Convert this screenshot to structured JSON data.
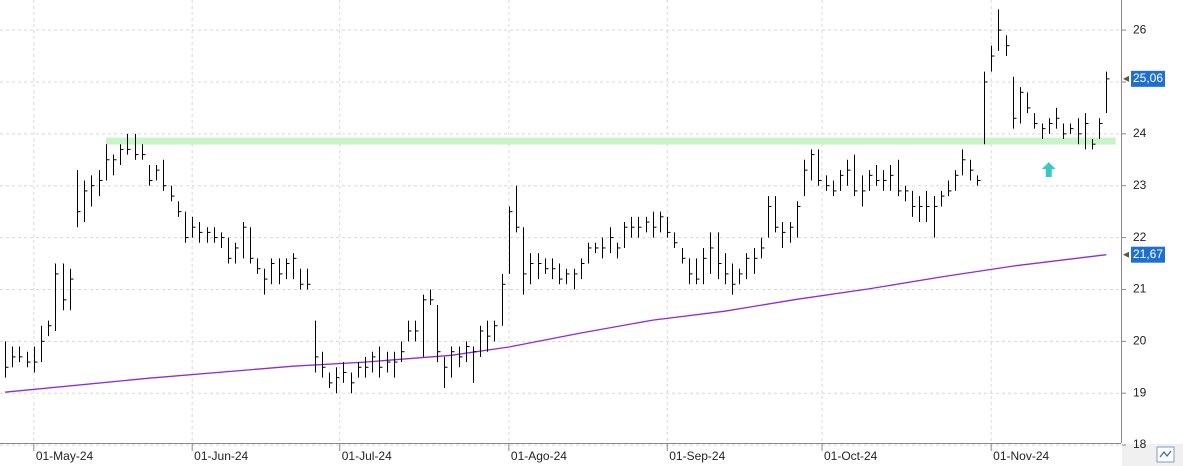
{
  "chart_data": {
    "type": "hlc",
    "color": "#000000",
    "high": [
      20.0,
      19.9,
      19.9,
      19.8,
      19.9,
      20.3,
      20.4,
      21.5,
      21.5,
      21.4,
      23.3,
      23.1,
      23.2,
      23.3,
      23.8,
      23.6,
      23.8,
      24.0,
      24.0,
      23.8,
      23.4,
      23.4,
      23.5,
      23.0,
      22.7,
      22.5,
      22.4,
      22.3,
      22.2,
      22.2,
      22.1,
      22.0,
      21.9,
      22.3,
      22.2,
      21.6,
      21.4,
      21.6,
      21.6,
      21.6,
      21.7,
      21.4,
      21.4,
      20.4,
      19.8,
      19.4,
      19.5,
      19.6,
      19.4,
      19.6,
      19.7,
      19.8,
      19.9,
      19.8,
      19.8,
      20.0,
      20.4,
      20.4,
      20.9,
      21.0,
      20.7,
      19.7,
      19.9,
      19.9,
      20.0,
      19.9,
      20.3,
      20.4,
      20.4,
      21.3,
      22.6,
      23.0,
      22.2,
      21.7,
      21.7,
      21.6,
      21.6,
      21.5,
      21.4,
      21.4,
      21.6,
      21.9,
      21.9,
      22.0,
      22.2,
      21.9,
      22.3,
      22.4,
      22.4,
      22.4,
      22.5,
      22.5,
      22.4,
      22.1,
      21.8,
      21.6,
      21.6,
      21.8,
      22.1,
      22.1,
      21.7,
      21.5,
      21.4,
      21.7,
      21.8,
      22.0,
      22.8,
      22.8,
      22.3,
      22.3,
      22.7,
      23.5,
      23.7,
      23.7,
      23.2,
      23.1,
      23.3,
      23.5,
      23.6,
      23.2,
      23.3,
      23.4,
      23.3,
      23.4,
      23.5,
      23.0,
      22.9,
      22.8,
      22.9,
      22.8,
      22.9,
      23.1,
      23.3,
      23.7,
      23.5,
      23.2,
      25.2,
      25.7,
      26.4,
      25.9,
      25.1,
      24.9,
      24.8,
      24.4,
      24.2,
      24.3,
      24.5,
      24.2,
      24.2,
      24.3,
      24.4,
      23.9,
      24.3,
      25.2
    ],
    "low": [
      19.3,
      19.5,
      19.6,
      19.5,
      19.4,
      19.6,
      20.1,
      20.2,
      20.6,
      20.6,
      22.2,
      22.3,
      22.6,
      22.8,
      23.1,
      23.2,
      23.4,
      23.6,
      23.5,
      23.5,
      23.0,
      23.1,
      22.9,
      22.7,
      22.4,
      21.9,
      22.0,
      21.9,
      21.9,
      21.9,
      21.8,
      21.5,
      21.5,
      21.6,
      21.5,
      21.3,
      20.9,
      21.1,
      21.1,
      21.2,
      21.2,
      21.0,
      21.0,
      19.4,
      19.3,
      19.1,
      19.0,
      19.2,
      19.0,
      19.3,
      19.3,
      19.4,
      19.3,
      19.4,
      19.3,
      19.6,
      20.0,
      20.0,
      19.7,
      20.7,
      19.6,
      19.1,
      19.3,
      19.5,
      19.6,
      19.2,
      19.7,
      19.8,
      20.0,
      20.3,
      21.3,
      22.1,
      20.9,
      21.1,
      21.2,
      21.3,
      21.2,
      21.1,
      21.1,
      21.0,
      21.2,
      21.5,
      21.7,
      21.6,
      21.7,
      21.6,
      21.8,
      22.0,
      22.0,
      22.1,
      22.0,
      22.1,
      22.0,
      21.8,
      21.5,
      21.1,
      21.1,
      21.1,
      21.3,
      21.2,
      21.1,
      20.9,
      21.1,
      21.2,
      21.3,
      21.6,
      22.0,
      22.1,
      21.8,
      21.9,
      22.0,
      22.8,
      23.1,
      23.0,
      22.9,
      22.8,
      22.9,
      23.0,
      22.8,
      22.6,
      22.9,
      23.0,
      22.9,
      22.9,
      22.8,
      22.7,
      22.4,
      22.3,
      22.3,
      22.0,
      22.6,
      22.8,
      22.9,
      23.2,
      23.1,
      23.0,
      23.8,
      25.2,
      25.6,
      25.5,
      24.1,
      24.2,
      24.4,
      24.1,
      23.9,
      24.0,
      24.1,
      23.9,
      24.0,
      23.8,
      23.7,
      23.7,
      23.9,
      24.4
    ],
    "close": [
      19.5,
      19.7,
      19.7,
      19.6,
      19.6,
      20.0,
      20.3,
      21.3,
      20.8,
      21.2,
      22.5,
      22.9,
      23.0,
      23.1,
      23.5,
      23.5,
      23.7,
      23.7,
      23.6,
      23.6,
      23.1,
      23.3,
      23.0,
      22.8,
      22.5,
      22.0,
      22.2,
      22.1,
      22.1,
      22.0,
      22.0,
      21.6,
      21.8,
      22.2,
      21.6,
      21.4,
      21.2,
      21.5,
      21.3,
      21.5,
      21.6,
      21.1,
      21.1,
      19.7,
      19.5,
      19.2,
      19.3,
      19.4,
      19.2,
      19.5,
      19.5,
      19.7,
      19.5,
      19.6,
      19.6,
      19.8,
      20.2,
      20.2,
      20.8,
      20.8,
      19.8,
      19.5,
      19.8,
      19.7,
      19.9,
      19.8,
      20.2,
      20.1,
      20.3,
      21.1,
      22.5,
      22.2,
      21.3,
      21.5,
      21.5,
      21.4,
      21.4,
      21.2,
      21.3,
      21.3,
      21.5,
      21.8,
      21.8,
      21.8,
      22.0,
      21.8,
      22.2,
      22.2,
      22.2,
      22.3,
      22.2,
      22.4,
      22.1,
      21.9,
      21.6,
      21.3,
      21.2,
      21.6,
      21.8,
      21.5,
      21.3,
      21.1,
      21.3,
      21.6,
      21.6,
      21.8,
      22.6,
      22.2,
      22.1,
      22.2,
      22.6,
      23.3,
      23.6,
      23.1,
      23.0,
      22.9,
      23.2,
      23.3,
      22.9,
      22.9,
      23.2,
      23.1,
      23.1,
      23.2,
      22.9,
      22.9,
      22.6,
      22.6,
      22.6,
      22.6,
      22.8,
      22.9,
      23.2,
      23.5,
      23.3,
      23.1,
      25.0,
      25.5,
      26.0,
      25.7,
      24.3,
      24.8,
      24.5,
      24.2,
      24.1,
      24.2,
      24.3,
      24.0,
      24.1,
      24.0,
      24.2,
      23.8,
      24.2,
      25.06
    ],
    "moving_average": {
      "color": "#8a2be2",
      "x": [
        0,
        20,
        40,
        50,
        62,
        70,
        80,
        90,
        100,
        110,
        120,
        130,
        140,
        153
      ],
      "values": [
        19.02,
        19.29,
        19.52,
        19.6,
        19.73,
        19.89,
        20.16,
        20.41,
        20.58,
        20.81,
        21.01,
        21.24,
        21.45,
        21.67
      ]
    },
    "level_line": {
      "value": 23.86,
      "x": [
        14,
        154.3
      ],
      "color": "#c8f5c8"
    },
    "arrow": {
      "x": 145,
      "y": 23.3,
      "color": "#3cc8c0"
    },
    "price_labels": [
      {
        "value": 25.06,
        "label": "25,06"
      },
      {
        "value": 21.67,
        "label": "21,67"
      }
    ],
    "price_label_color": "#1f6fd1",
    "xlim": [
      -0.7,
      154.9
    ],
    "xticks": [
      {
        "value": 4,
        "label": "01-May-24"
      },
      {
        "value": 26,
        "label": "01-Jun-24"
      },
      {
        "value": 46.5,
        "label": "01-Jul-24"
      },
      {
        "value": 70,
        "label": "01-Ago-24"
      },
      {
        "value": 92,
        "label": "01-Sep-24"
      },
      {
        "value": 113.5,
        "label": "01-Oct-24"
      },
      {
        "value": 137,
        "label": "01-Nov-24"
      }
    ],
    "ylim": [
      18.04,
      26.58
    ],
    "yticks": [
      18,
      19,
      20,
      21,
      22,
      23,
      24,
      25,
      26
    ],
    "grid": true
  }
}
